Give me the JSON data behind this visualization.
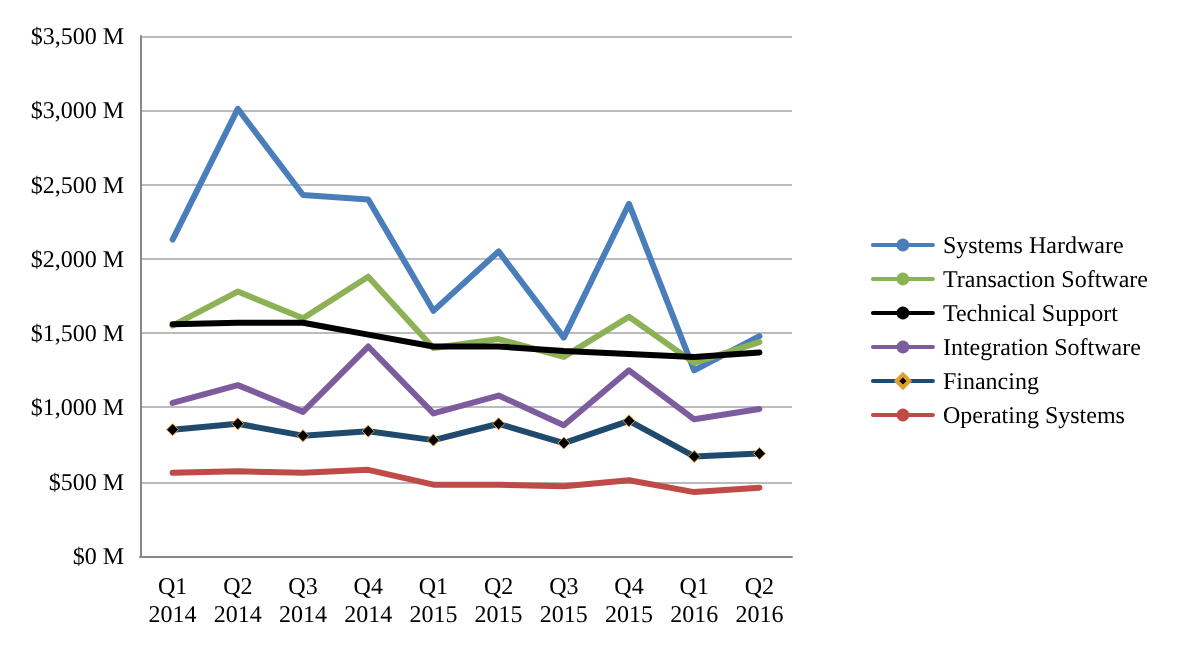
{
  "chart_data": {
    "type": "line",
    "categories": [
      "Q1\n2014",
      "Q2\n2014",
      "Q3\n2014",
      "Q4\n2014",
      "Q1\n2015",
      "Q2\n2015",
      "Q3\n2015",
      "Q4\n2015",
      "Q1\n2016",
      "Q2\n2016"
    ],
    "series": [
      {
        "name": "Systems Hardware",
        "color": "#4a7ebb",
        "values": [
          2130,
          3010,
          2430,
          2400,
          1650,
          2050,
          1470,
          2370,
          1250,
          1480
        ]
      },
      {
        "name": "Transaction Software",
        "color": "#8db255",
        "values": [
          1550,
          1780,
          1600,
          1880,
          1400,
          1460,
          1340,
          1610,
          1300,
          1440
        ]
      },
      {
        "name": "Technical Support",
        "color": "#000000",
        "values": [
          1560,
          1570,
          1570,
          1490,
          1410,
          1410,
          1380,
          1360,
          1340,
          1370
        ]
      },
      {
        "name": "Integration Software",
        "color": "#7d5c9e",
        "values": [
          1030,
          1150,
          970,
          1410,
          960,
          1080,
          880,
          1250,
          920,
          990
        ]
      },
      {
        "name": "Financing",
        "color": "#1f4a6e",
        "marker": "diamond",
        "values": [
          850,
          890,
          810,
          840,
          780,
          890,
          760,
          910,
          670,
          690
        ]
      },
      {
        "name": "Operating Systems",
        "color": "#be4b48",
        "values": [
          560,
          570,
          560,
          580,
          480,
          480,
          470,
          510,
          430,
          460
        ]
      }
    ],
    "ylim": [
      0,
      3500
    ],
    "yticks": [
      {
        "value": 0,
        "label": "$0 M"
      },
      {
        "value": 500,
        "label": "$500 M"
      },
      {
        "value": 1000,
        "label": "$1,000 M"
      },
      {
        "value": 1500,
        "label": "$1,500 M"
      },
      {
        "value": 2000,
        "label": "$2,000 M"
      },
      {
        "value": 2500,
        "label": "$2,500 M"
      },
      {
        "value": 3000,
        "label": "$3,000 M"
      },
      {
        "value": 3500,
        "label": "$3,500 M"
      }
    ],
    "grid": "y",
    "legend": "right",
    "marker": "none",
    "line_style": "solid"
  }
}
